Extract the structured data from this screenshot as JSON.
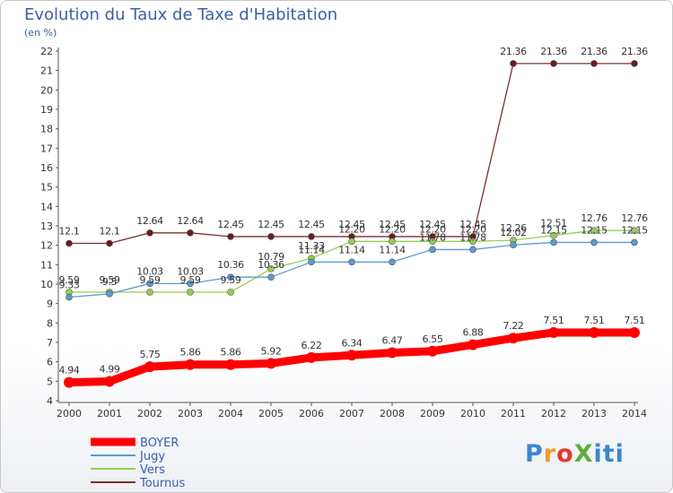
{
  "title": "Evolution du Taux de Taxe d'Habitation",
  "unit_label": "(en %)",
  "logo": "ProXiti",
  "chart_data": {
    "type": "line",
    "title": "Evolution du Taux de Taxe d'Habitation",
    "ylabel": "(en %)",
    "xlabel": "",
    "ylim": [
      4,
      22
    ],
    "yticks": [
      4,
      5,
      6,
      7,
      8,
      9,
      10,
      11,
      12,
      13,
      14,
      15,
      16,
      17,
      18,
      19,
      20,
      21,
      22
    ],
    "grid": false,
    "legend_position": "bottom-left",
    "x": [
      "2000",
      "2001",
      "2002",
      "2003",
      "2004",
      "2005",
      "2006",
      "2007",
      "2008",
      "2009",
      "2010",
      "2011",
      "2012",
      "2013",
      "2014"
    ],
    "series": [
      {
        "name": "BOYER",
        "color": "#ff0000",
        "values": [
          4.94,
          4.99,
          5.75,
          5.86,
          5.86,
          5.92,
          6.22,
          6.34,
          6.47,
          6.55,
          6.88,
          7.22,
          7.51,
          7.51,
          7.51
        ],
        "labels": [
          "4.94",
          "4.99",
          "5.75",
          "5.86",
          "5.86",
          "5.92",
          "6.22",
          "6.34",
          "6.47",
          "6.55",
          "6.88",
          "7.22",
          "7.51",
          "7.51",
          "7.51"
        ]
      },
      {
        "name": "Jugy",
        "color": "#5b9bd5",
        "values": [
          9.33,
          9.5,
          10.03,
          10.03,
          10.36,
          10.36,
          11.14,
          11.14,
          11.14,
          11.78,
          11.78,
          12.02,
          12.15,
          12.15,
          12.15
        ],
        "labels": [
          "9.33",
          "9.5",
          "10.03",
          "10.03",
          "10.36",
          "10.36",
          "11.14",
          "11.14",
          "11.14",
          "11.78",
          "11.78",
          "12.02",
          "12.15",
          "12.15",
          "12.15"
        ]
      },
      {
        "name": "Vers",
        "color": "#92d050",
        "values": [
          9.59,
          9.59,
          9.59,
          9.59,
          9.59,
          10.79,
          11.33,
          12.2,
          12.2,
          12.2,
          12.2,
          12.26,
          12.51,
          12.76,
          12.76
        ],
        "labels": [
          "9.59",
          "9.59",
          "9.59",
          "9.59",
          "9.59",
          "10.79",
          "11.33",
          "12.20",
          "12.20",
          "12.20",
          "12.20",
          "12.26",
          "12.51",
          "12.76",
          "12.76"
        ]
      },
      {
        "name": "Tournus",
        "color": "#7b3030",
        "values": [
          12.1,
          12.1,
          12.64,
          12.64,
          12.45,
          12.45,
          12.45,
          12.45,
          12.45,
          12.45,
          12.45,
          21.36,
          21.36,
          21.36,
          21.36
        ],
        "labels": [
          "12.1",
          "12.1",
          "12.64",
          "12.64",
          "12.45",
          "12.45",
          "12.45",
          "12.45",
          "12.45",
          "12.45",
          "12.45",
          "21.36",
          "21.36",
          "21.36",
          "21.36"
        ]
      }
    ]
  }
}
